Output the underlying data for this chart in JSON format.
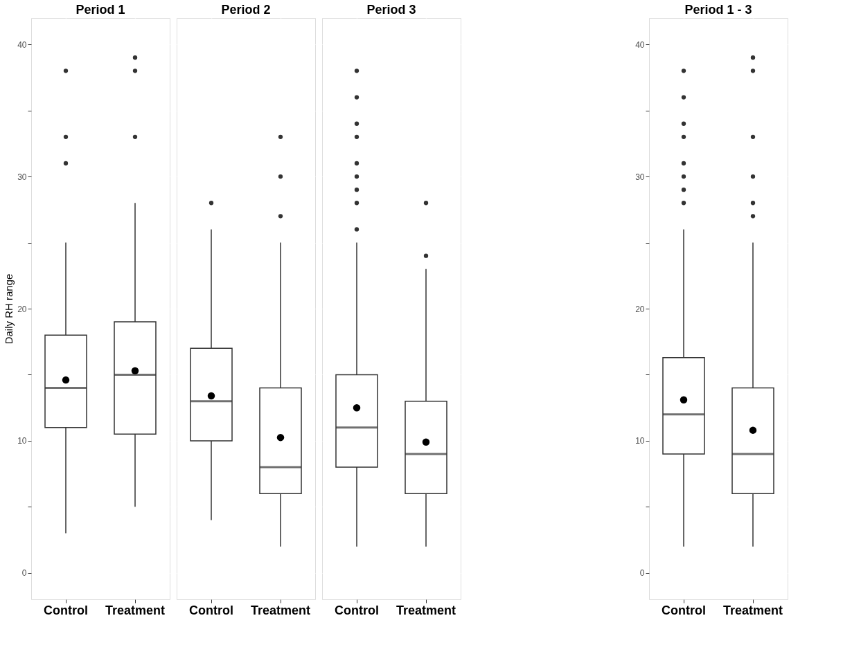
{
  "chart_data": [
    {
      "type": "box",
      "title": "Period 1",
      "ylabel": "Daily RH range",
      "categories": [
        "Control",
        "Treatment"
      ],
      "ylim": [
        -2,
        42
      ],
      "yticks": [
        0,
        {
          "value": 5,
          "label": null
        },
        10,
        {
          "value": 15,
          "label": null
        },
        20,
        {
          "value": 25,
          "label": null
        },
        30,
        {
          "value": 35,
          "label": null
        },
        40
      ],
      "grid": true,
      "boxes": [
        {
          "low": 3,
          "q1": 11,
          "median": 14,
          "q3": 18,
          "high": 25,
          "mean": 14.6,
          "outliers": [
            31,
            33,
            38
          ]
        },
        {
          "low": 5,
          "q1": 10.5,
          "median": 15,
          "q3": 19,
          "high": 28,
          "mean": 15.3,
          "outliers": [
            33,
            38,
            39
          ]
        }
      ]
    },
    {
      "type": "box",
      "title": "Period 2",
      "categories": [
        "Control",
        "Treatment"
      ],
      "ylim": [
        -2,
        42
      ],
      "yticks": [
        0,
        {
          "value": 5,
          "label": null
        },
        10,
        {
          "value": 15,
          "label": null
        },
        20,
        {
          "value": 25,
          "label": null
        },
        30,
        {
          "value": 35,
          "label": null
        },
        40
      ],
      "grid": true,
      "tick_labels": "x",
      "boxes": [
        {
          "low": 4,
          "q1": 10,
          "median": 13,
          "q3": 17,
          "high": 26,
          "mean": 13.4,
          "outliers": [
            28
          ]
        },
        {
          "low": 2,
          "q1": 6,
          "median": 8,
          "q3": 14,
          "high": 25,
          "mean": 10.25,
          "outliers": [
            27,
            30,
            33
          ]
        }
      ]
    },
    {
      "type": "box",
      "title": "Period 3",
      "categories": [
        "Control",
        "Treatment"
      ],
      "ylim": [
        -2,
        42
      ],
      "yticks": [
        0,
        {
          "value": 5,
          "label": null
        },
        10,
        {
          "value": 15,
          "label": null
        },
        20,
        {
          "value": 25,
          "label": null
        },
        30,
        {
          "value": 35,
          "label": null
        },
        40
      ],
      "grid": true,
      "tick_labels": "x",
      "boxes": [
        {
          "low": 2,
          "q1": 8,
          "median": 11,
          "q3": 15,
          "high": 25,
          "mean": 12.5,
          "outliers": [
            26,
            28,
            29,
            30,
            31,
            33,
            34,
            36,
            38
          ]
        },
        {
          "low": 2,
          "q1": 6,
          "median": 9,
          "q3": 13,
          "high": 23,
          "mean": 9.9,
          "outliers": [
            24,
            28
          ]
        }
      ]
    },
    {
      "type": "box",
      "title": "Period 1 - 3",
      "categories": [
        "Control",
        "Treatment"
      ],
      "ylim": [
        -2,
        42
      ],
      "yticks": [
        0,
        {
          "value": 5,
          "label": null
        },
        10,
        {
          "value": 15,
          "label": null
        },
        20,
        {
          "value": 25,
          "label": null
        },
        30,
        {
          "value": 35,
          "label": null
        },
        40
      ],
      "grid": true,
      "boxes": [
        {
          "low": 2,
          "q1": 9,
          "median": 12,
          "q3": 16.3,
          "high": 26,
          "mean": 13.1,
          "outliers": [
            28,
            29,
            30,
            31,
            33,
            34,
            36,
            38
          ]
        },
        {
          "low": 2,
          "q1": 6,
          "median": 9,
          "q3": 14,
          "high": 25,
          "mean": 10.8,
          "outliers": [
            27,
            28,
            30,
            33,
            38,
            39
          ]
        }
      ]
    }
  ]
}
